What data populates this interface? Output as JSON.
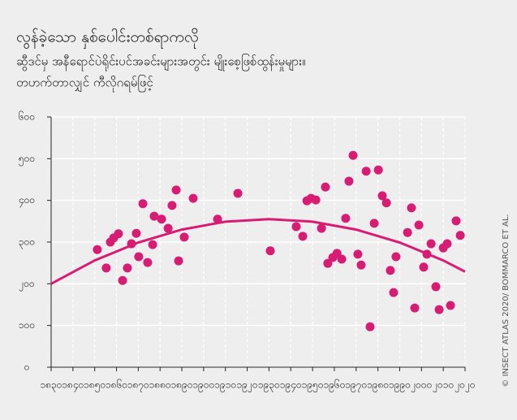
{
  "chart_data": {
    "type": "scatter",
    "title": "လွန်ခဲ့သော နှစ်ပေါင်းတစ်ရာကလို",
    "subtitle": [
      "ဆွီဒင်မှ အနီရောင်ပဲရိုင်းပင်အခင်းများအတွင်း မျိုးစေ့ဖြစ်ထွန်းမှုများ။",
      "တဟက်တာလျှင် ကီလိုဂရမ်ဖြင့်"
    ],
    "credit": "© INSECT ATLAS 2020/ BOMMARCO ET AL.",
    "xlim": [
      1830,
      2020
    ],
    "ylim": [
      0,
      600
    ],
    "xticks": [
      {
        "value": 1830,
        "label": "၁၈၃၀"
      },
      {
        "value": 1840,
        "label": "၁၈၄၀"
      },
      {
        "value": 1850,
        "label": "၁၈၅၀"
      },
      {
        "value": 1860,
        "label": "၁၈၆၀"
      },
      {
        "value": 1870,
        "label": "၁၈၇၀"
      },
      {
        "value": 1880,
        "label": "၁၈၈၀"
      },
      {
        "value": 1890,
        "label": "၁၈၉၀"
      },
      {
        "value": 1900,
        "label": "၁၉၀၀"
      },
      {
        "value": 1910,
        "label": "၁၉၁၀"
      },
      {
        "value": 1920,
        "label": "၁၉၂၀"
      },
      {
        "value": 1930,
        "label": "၁၉၃၀"
      },
      {
        "value": 1940,
        "label": "၁၉၄၀"
      },
      {
        "value": 1950,
        "label": "၁၉၅၀"
      },
      {
        "value": 1960,
        "label": "၁၉၆၀"
      },
      {
        "value": 1970,
        "label": "၁၉၇၀"
      },
      {
        "value": 1980,
        "label": "၁၉၈၀"
      },
      {
        "value": 1990,
        "label": "၁၉၉၀"
      },
      {
        "value": 2000,
        "label": "၂၀၀၀"
      },
      {
        "value": 2010,
        "label": "၂၀၁၀"
      },
      {
        "value": 2020,
        "label": "၂၀၂၀"
      }
    ],
    "yticks": [
      {
        "value": 0,
        "label": "၀"
      },
      {
        "value": 100,
        "label": "၁၀၀"
      },
      {
        "value": 200,
        "label": "၂၀၀"
      },
      {
        "value": 300,
        "label": "၃၀၀"
      },
      {
        "value": 400,
        "label": "၄၀၀"
      },
      {
        "value": 500,
        "label": "၅၀၀"
      },
      {
        "value": 600,
        "label": "၆၀၀"
      }
    ],
    "grid": true,
    "series": [
      {
        "type": "scatter",
        "color": "#d81b73",
        "x": [
          1851.2,
          1855.3,
          1857.2,
          1858.7,
          1860.9,
          1862.8,
          1865,
          1866.9,
          1869.1,
          1870.2,
          1872.1,
          1874.3,
          1876.6,
          1877.3,
          1880.7,
          1883.7,
          1885.5,
          1887.4,
          1888.5,
          1891.1,
          1895.2,
          1906.4,
          1915.7,
          1930.6,
          1942.5,
          1945.5,
          1947.4,
          1949.3,
          1951.5,
          1954.1,
          1955.9,
          1957,
          1959.3,
          1961.2,
          1963.4,
          1965.2,
          1966.7,
          1968.6,
          1970.8,
          1972.3,
          1974.6,
          1976.4,
          1978.3,
          1980.2,
          1982,
          1983.9,
          1985.7,
          1987.2,
          1988.3,
          1993.6,
          1995.4,
          1996.9,
          1998.8,
          2001,
          2002.5,
          2004.4,
          2006.6,
          2008.1,
          2010,
          2011.8,
          2013.3,
          2015.9,
          2017.8
        ],
        "values": [
          282,
          238,
          300,
          310,
          320,
          208,
          238,
          296,
          321,
          265,
          392,
          251,
          294,
          362,
          355,
          333,
          388,
          425,
          255,
          312,
          405,
          355,
          417,
          279,
          337,
          314,
          399,
          405,
          401,
          333,
          432,
          249,
          263,
          273,
          259,
          357,
          446,
          508,
          271,
          245,
          470,
          97,
          345,
          473,
          411,
          394,
          232,
          179,
          265,
          323,
          382,
          142,
          341,
          240,
          271,
          296,
          193,
          138,
          286,
          296,
          148,
          351,
          316
        ]
      },
      {
        "type": "line",
        "color": "#d81b73",
        "x": [
          1830,
          1850,
          1870,
          1890,
          1910,
          1930,
          1950,
          1970,
          1990,
          2010,
          2020
        ],
        "values": [
          200,
          256,
          299,
          330,
          349,
          355,
          349,
          330,
          299,
          256,
          229
        ]
      }
    ]
  }
}
